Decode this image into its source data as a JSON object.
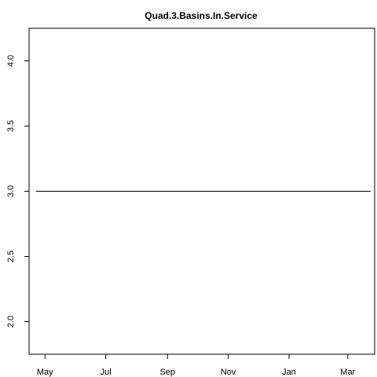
{
  "chart_data": {
    "type": "line",
    "title": "Quad.3.Basins.In.Service",
    "xlabel": "",
    "ylabel": "",
    "x_tick_labels": [
      "May",
      "Jul",
      "Sep",
      "Nov",
      "Jan",
      "Mar"
    ],
    "x_tick_dates": [
      "2013-05-01",
      "2013-07-01",
      "2013-09-01",
      "2013-11-01",
      "2014-01-01",
      "2014-03-01"
    ],
    "xlim": [
      "2013-04-15",
      "2014-03-28"
    ],
    "y_ticks": [
      2.0,
      2.5,
      3.0,
      3.5,
      4.0
    ],
    "y_tick_labels": [
      "2.0",
      "2.5",
      "3.0",
      "3.5",
      "4.0"
    ],
    "ylim": [
      1.75,
      4.25
    ],
    "series": [
      {
        "x": [
          "2013-04-22",
          "2014-03-24"
        ],
        "values": [
          3,
          3
        ],
        "color": "#000000"
      }
    ],
    "grid": false,
    "legend": "none"
  }
}
